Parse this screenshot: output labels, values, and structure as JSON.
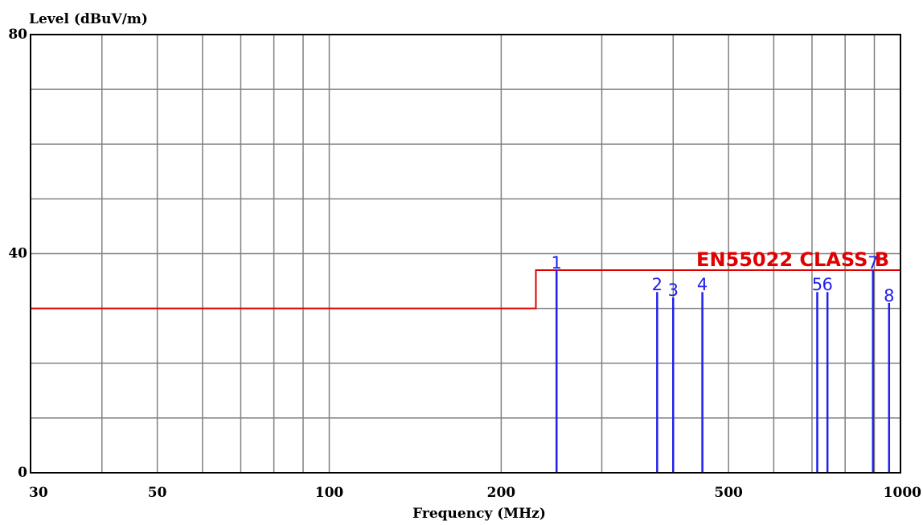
{
  "chart_data": {
    "type": "line",
    "title": "",
    "ylabel": "Level (dBuV/m)",
    "xlabel": "Frequency (MHz)",
    "x_scale": "log",
    "xlim": [
      30,
      1000
    ],
    "ylim": [
      0,
      80
    ],
    "grid": true,
    "x_tick_labels": [
      {
        "value": 30,
        "label": "30"
      },
      {
        "value": 50,
        "label": "50"
      },
      {
        "value": 100,
        "label": "100"
      },
      {
        "value": 200,
        "label": "200"
      },
      {
        "value": 500,
        "label": "500"
      },
      {
        "value": 1000,
        "label": "1000"
      }
    ],
    "x_gridlines": [
      40,
      50,
      60,
      70,
      80,
      90,
      100,
      200,
      300,
      400,
      500,
      600,
      700,
      800,
      900
    ],
    "y_tick_labels": [
      {
        "value": 0,
        "label": "0"
      },
      {
        "value": 40,
        "label": "40"
      },
      {
        "value": 80,
        "label": "80"
      }
    ],
    "y_gridlines": [
      10,
      20,
      30,
      40,
      50,
      60,
      70
    ],
    "limit_line": {
      "name": "EN55022 CLASS B",
      "color": "#e00000",
      "points": [
        [
          30,
          30
        ],
        [
          230,
          30
        ],
        [
          230,
          37
        ],
        [
          1000,
          37
        ]
      ]
    },
    "markers": {
      "color": "#2020ee",
      "points": [
        {
          "label": "1",
          "x": 250,
          "y": 37
        },
        {
          "label": "2",
          "x": 375,
          "y": 33
        },
        {
          "label": "3",
          "x": 400,
          "y": 32
        },
        {
          "label": "4",
          "x": 450,
          "y": 33
        },
        {
          "label": "5",
          "x": 715,
          "y": 33
        },
        {
          "label": "6",
          "x": 745,
          "y": 33
        },
        {
          "label": "7",
          "x": 895,
          "y": 37
        },
        {
          "label": "8",
          "x": 955,
          "y": 31
        }
      ]
    }
  }
}
